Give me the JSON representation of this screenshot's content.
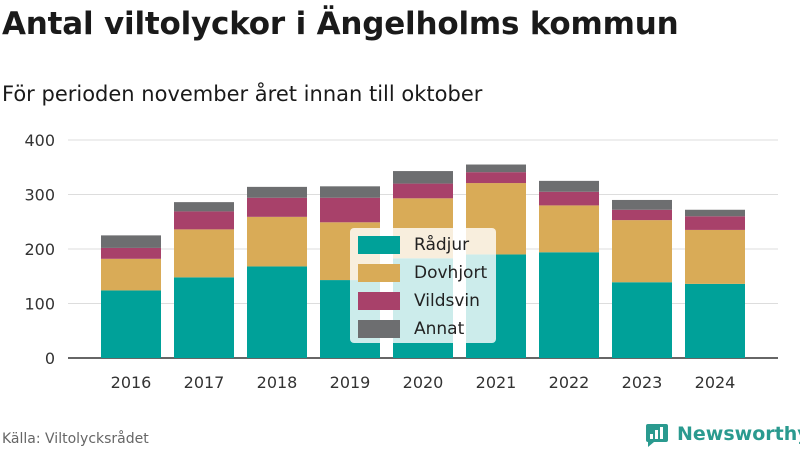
{
  "title": "Antal viltolyckor i Ängelholms kommun",
  "subtitle": "För perioden november året innan till oktober",
  "source": "Källa: Viltolycksrådet",
  "brand": {
    "name": "Newsworthy",
    "icon": "newsworthy-logo-icon",
    "color": "#2a9a8f"
  },
  "chart_data": {
    "type": "bar",
    "stacked": true,
    "categories": [
      "2016",
      "2017",
      "2018",
      "2019",
      "2020",
      "2021",
      "2022",
      "2023",
      "2024"
    ],
    "series": [
      {
        "name": "Rådjur",
        "color": "#00a199",
        "values": [
          124,
          148,
          168,
          143,
          183,
          190,
          194,
          139,
          136
        ]
      },
      {
        "name": "Dovhjort",
        "color": "#d9ab57",
        "values": [
          58,
          88,
          91,
          106,
          110,
          131,
          86,
          114,
          99
        ]
      },
      {
        "name": "Vildsvin",
        "color": "#a8416a",
        "values": [
          20,
          33,
          35,
          45,
          27,
          20,
          25,
          19,
          25
        ]
      },
      {
        "name": "Annat",
        "color": "#6d6e70",
        "values": [
          23,
          17,
          20,
          21,
          23,
          14,
          20,
          18,
          12
        ]
      }
    ],
    "yticks": [
      0,
      100,
      200,
      300,
      400
    ],
    "ylim": [
      0,
      400
    ],
    "grid": true,
    "legend_position": "center"
  }
}
